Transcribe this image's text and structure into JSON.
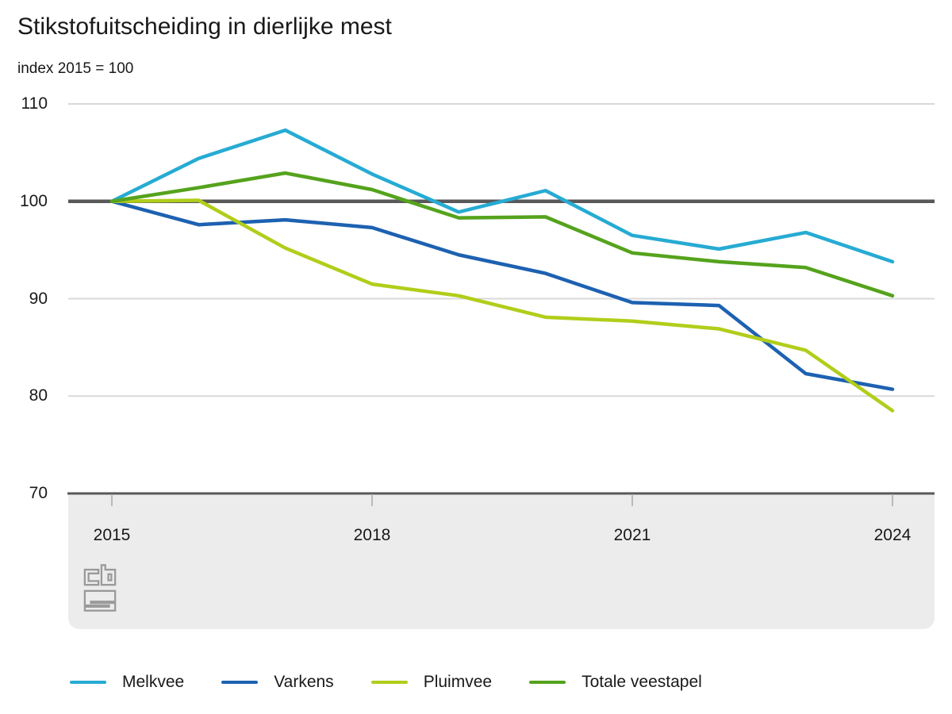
{
  "title": "Stikstofuitscheiding in dierlijke mest",
  "subtitle": "index 2015 = 100",
  "footer": {
    "logo_icon": "cbs-logo"
  },
  "chart_data": {
    "type": "line",
    "title": "Stikstofuitscheiding in dierlijke mest",
    "subtitle": "index 2015 = 100",
    "xlabel": "",
    "ylabel": "index 2015 = 100",
    "x": [
      2015,
      2016,
      2017,
      2018,
      2019,
      2020,
      2021,
      2022,
      2023,
      2024
    ],
    "series": [
      {
        "name": "Melkvee",
        "color": "#26abd3",
        "values": [
          100,
          104.4,
          107.3,
          102.8,
          98.9,
          101.1,
          96.5,
          95.1,
          96.8,
          93.8
        ]
      },
      {
        "name": "Varkens",
        "color": "#1d61b1",
        "values": [
          100,
          97.6,
          98.1,
          97.3,
          94.5,
          92.6,
          89.6,
          89.3,
          82.3,
          80.7
        ]
      },
      {
        "name": "Pluimvee",
        "color": "#b2cd1a",
        "values": [
          100,
          100.1,
          95.2,
          91.5,
          90.3,
          88.1,
          87.7,
          86.9,
          84.7,
          78.5
        ]
      },
      {
        "name": "Totale veestapel",
        "color": "#55a31d",
        "values": [
          100,
          101.4,
          102.9,
          101.2,
          98.3,
          98.4,
          94.7,
          93.8,
          93.2,
          90.3
        ]
      }
    ],
    "ylim": [
      70,
      110
    ],
    "yticks": [
      70,
      80,
      90,
      100,
      110
    ],
    "xticks": [
      2015,
      2018,
      2021,
      2024
    ],
    "baseline": 100,
    "grid": true,
    "legend_position": "bottom",
    "baseline_color": "#595959",
    "grid_color": "#d9d9d9"
  }
}
